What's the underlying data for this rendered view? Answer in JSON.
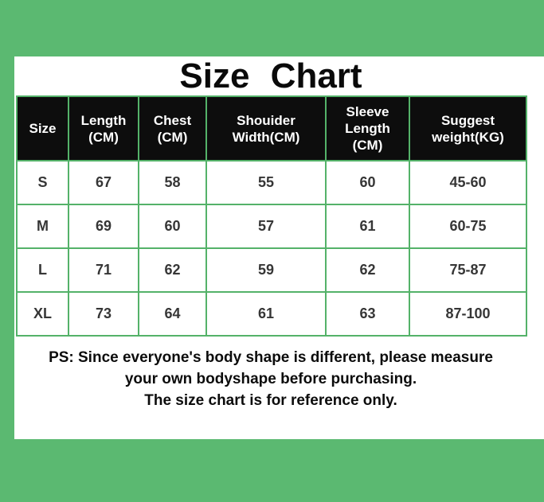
{
  "page": {
    "title": "Size Chart",
    "note_lines": [
      "PS: Since everyone's body shape is different, please measure",
      "your own bodyshape before purchasing.",
      "The size chart is for reference only."
    ]
  },
  "colors": {
    "frame_green": "#5bb971",
    "table_border_green": "#54b269",
    "header_bg": "#0d0d0d",
    "header_text": "#ffffff",
    "cell_text": "#363636",
    "title_text": "#0a0a0a"
  },
  "chart_data": {
    "type": "table",
    "title": "Size Chart",
    "columns": [
      "Size",
      "Length\n(CM)",
      "Chest\n(CM)",
      "Shouider\nWidth(CM)",
      "Sleeve\nLength\n(CM)",
      "Suggest\nweight(KG)"
    ],
    "rows": [
      [
        "S",
        "67",
        "58",
        "55",
        "60",
        "45-60"
      ],
      [
        "M",
        "69",
        "60",
        "57",
        "61",
        "60-75"
      ],
      [
        "L",
        "71",
        "62",
        "59",
        "62",
        "75-87"
      ],
      [
        "XL",
        "73",
        "64",
        "61",
        "63",
        "87-100"
      ]
    ]
  }
}
